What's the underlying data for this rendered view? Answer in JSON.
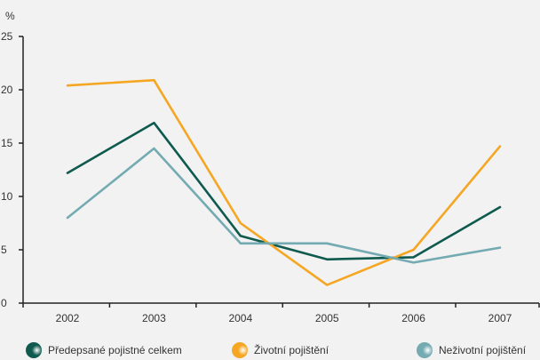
{
  "chart_data": {
    "type": "line",
    "unit_label": "%",
    "categories": [
      "2002",
      "2003",
      "2004",
      "2005",
      "2006",
      "2007"
    ],
    "ylim": [
      0,
      25
    ],
    "yticks": [
      0,
      5,
      10,
      15,
      20,
      25
    ],
    "grid": false,
    "legend_position": "bottom",
    "series": [
      {
        "name": "Předepsané pojistné celkem",
        "color": "#0f5a4e",
        "values": [
          12.2,
          16.9,
          6.3,
          4.1,
          4.3,
          9.0
        ]
      },
      {
        "name": "Životní pojištění",
        "color": "#f5a623",
        "values": [
          20.4,
          20.9,
          7.5,
          1.7,
          5.0,
          14.7
        ]
      },
      {
        "name": "Neživotní pojištění",
        "color": "#74aab1",
        "values": [
          8.0,
          14.5,
          5.6,
          5.6,
          3.8,
          5.2
        ]
      }
    ]
  }
}
